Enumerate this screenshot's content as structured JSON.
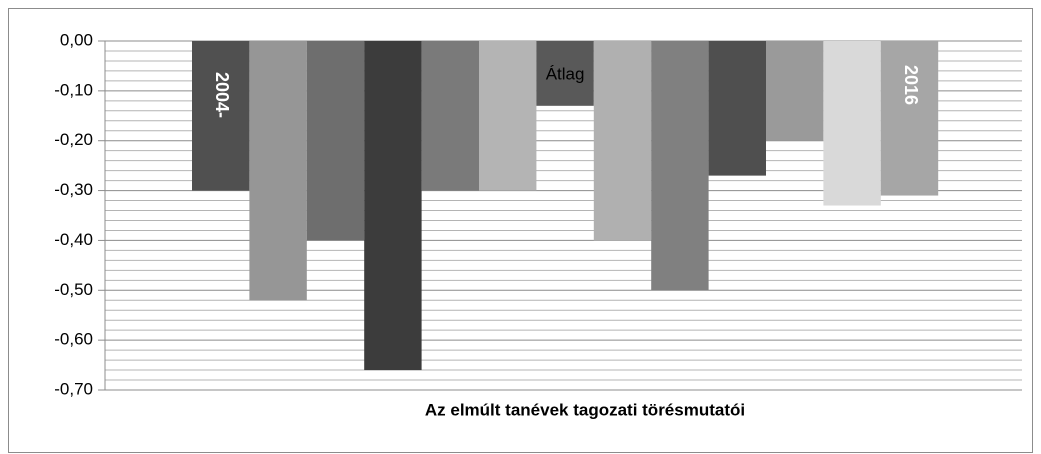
{
  "chart_data": {
    "type": "bar",
    "title": "Az elmúlt tanévek tagozati törésmutatói",
    "categories": [
      "2004-",
      null,
      null,
      null,
      null,
      null,
      "Átlag",
      null,
      null,
      null,
      null,
      null,
      "2016"
    ],
    "values": [
      -0.3,
      -0.52,
      -0.4,
      -0.66,
      -0.3,
      -0.3,
      -0.13,
      -0.4,
      -0.5,
      -0.27,
      -0.2,
      -0.33,
      -0.31
    ],
    "colors": [
      "#505050",
      "#969696",
      "#6e6e6e",
      "#3c3c3c",
      "#7a7a7a",
      "#b4b4b4",
      "#595959",
      "#b0b0b0",
      "#808080",
      "#4f4f4f",
      "#9a9a9a",
      "#d9d9d9",
      "#a6a6a6"
    ],
    "ylim": [
      -0.7,
      0
    ],
    "yticks": [
      {
        "value": 0,
        "label": "0,00"
      },
      {
        "value": -0.1,
        "label": "-0,10"
      },
      {
        "value": -0.2,
        "label": "-0,20"
      },
      {
        "value": -0.3,
        "label": "-0,30"
      },
      {
        "value": -0.4,
        "label": "-0,40"
      },
      {
        "value": -0.5,
        "label": "-0,50"
      },
      {
        "value": -0.6,
        "label": "-0,60"
      },
      {
        "value": -0.7,
        "label": "-0,70"
      }
    ],
    "minor_yticks": [
      -0.02,
      -0.04,
      -0.06,
      -0.08,
      -0.12,
      -0.14,
      -0.16,
      -0.18,
      -0.22,
      -0.24,
      -0.26,
      -0.28,
      -0.32,
      -0.34,
      -0.36,
      -0.38,
      -0.42,
      -0.44,
      -0.46,
      -0.48,
      -0.52,
      -0.54,
      -0.56,
      -0.58,
      -0.62,
      -0.64,
      -0.66,
      -0.68
    ],
    "grid": true
  }
}
